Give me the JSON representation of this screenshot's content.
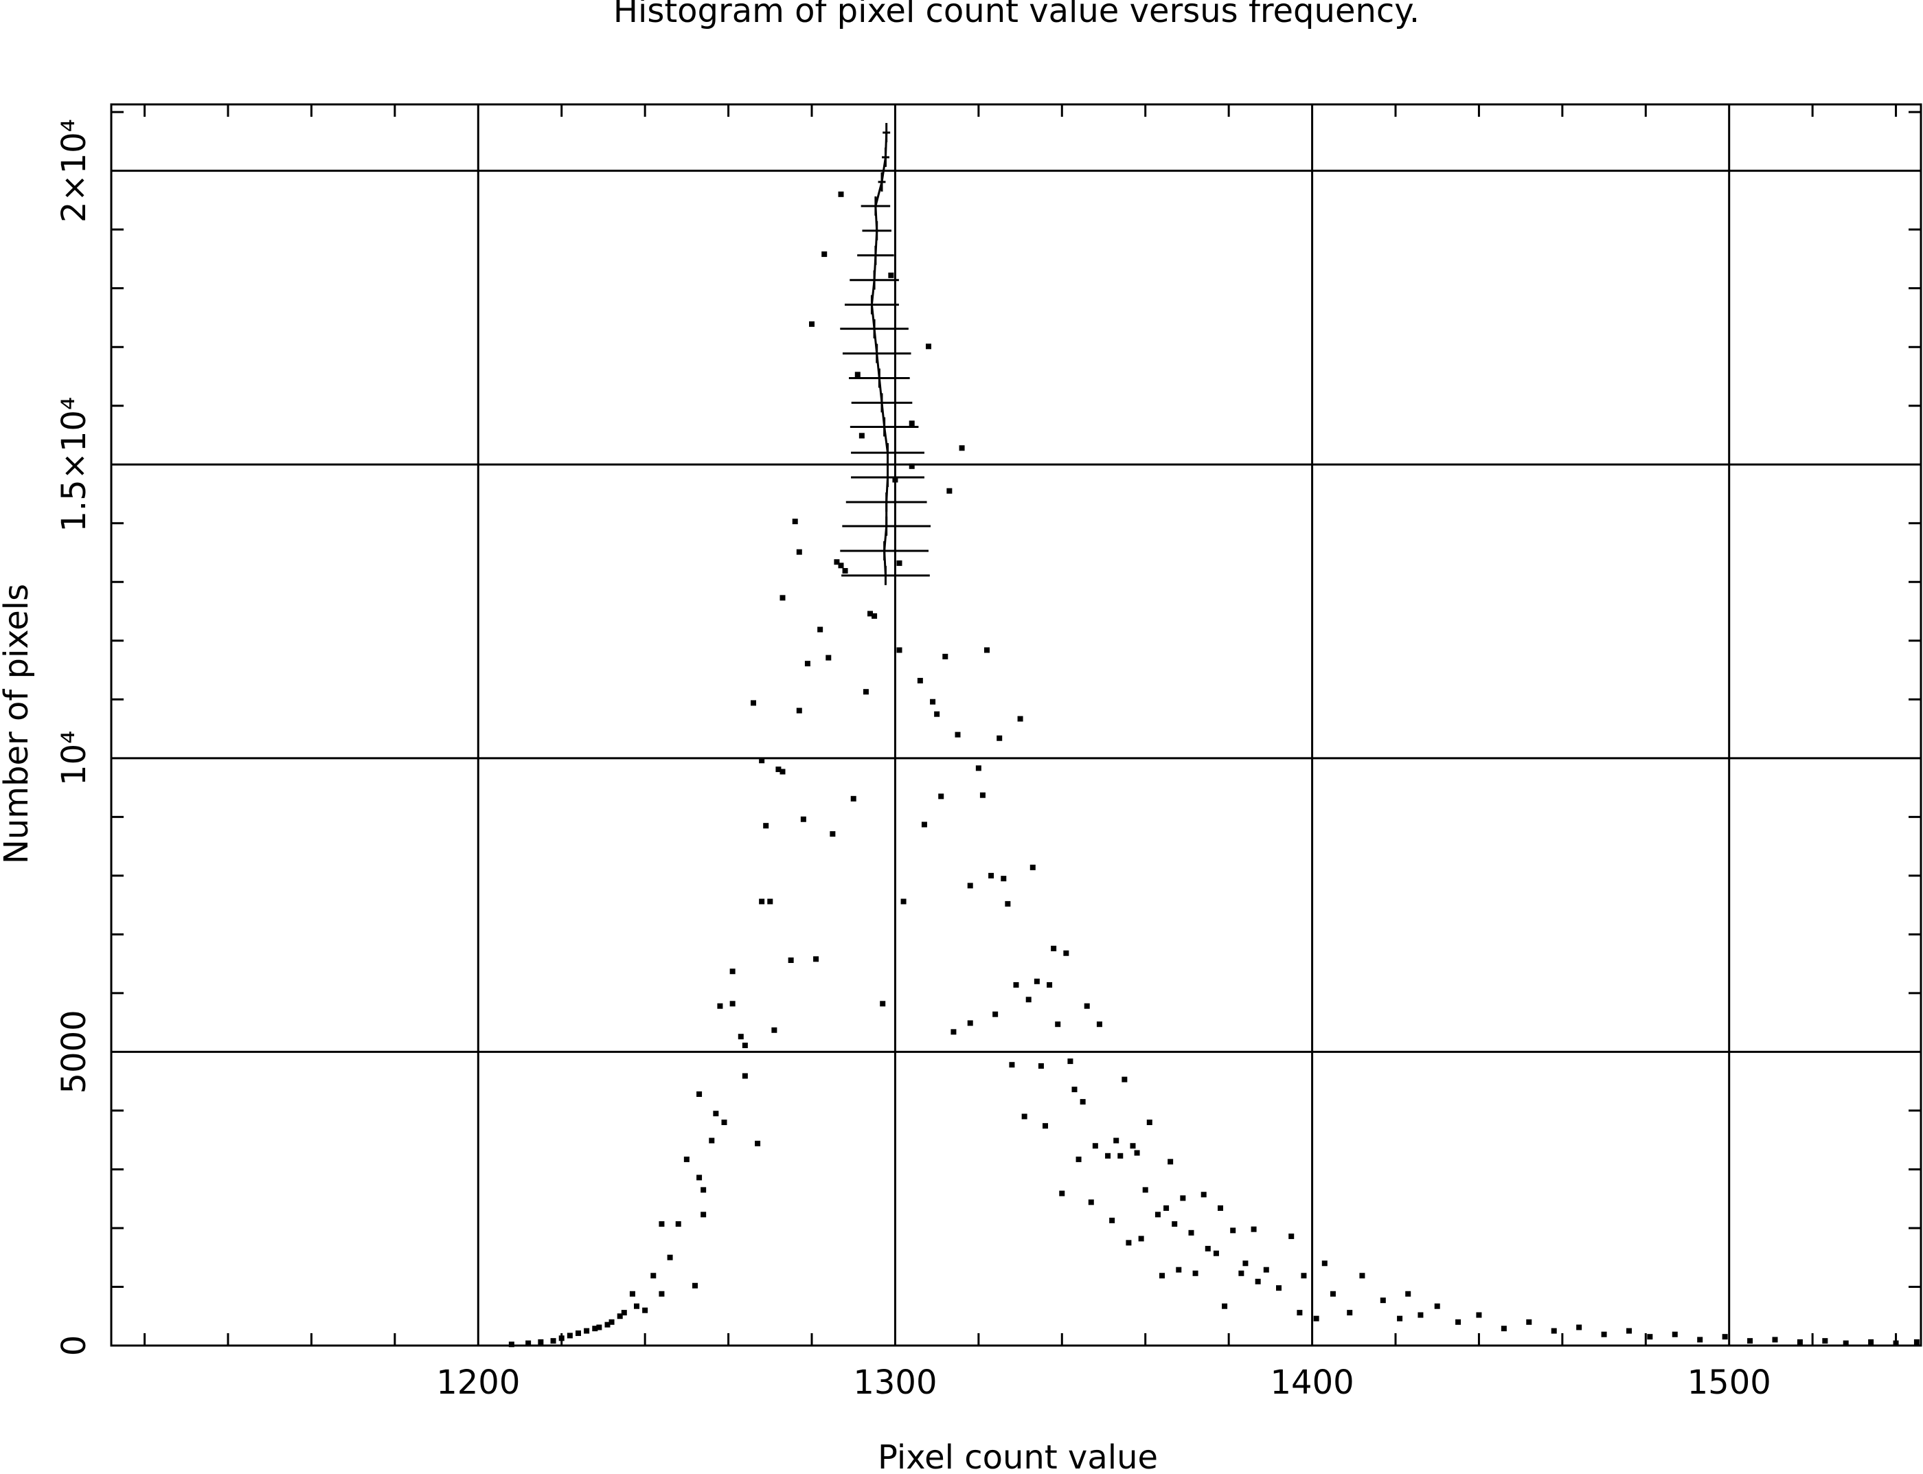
{
  "chart_data": {
    "type": "scatter",
    "title": "Histogram of pixel count value versus frequency.",
    "xlabel": "Pixel count value",
    "ylabel": "Number of pixels",
    "xlim": [
      1112,
      1546
    ],
    "ylim": [
      0,
      21130
    ],
    "xticks": [
      1200,
      1300,
      1400,
      1500
    ],
    "yticks": [
      0,
      5000,
      {
        "value": 10000,
        "label": "10⁴"
      },
      {
        "value": 15000,
        "label": "1.5×10⁴"
      },
      {
        "value": 20000,
        "label": "2×10⁴"
      }
    ],
    "xminorticks": [
      1120,
      1140,
      1160,
      1180,
      1220,
      1240,
      1260,
      1280,
      1320,
      1340,
      1360,
      1380,
      1420,
      1440,
      1460,
      1480,
      1520,
      1540
    ],
    "yminorticks": [
      1000,
      2000,
      3000,
      4000,
      6000,
      7000,
      8000,
      9000,
      11000,
      12000,
      13000,
      14000,
      16000,
      17000,
      18000,
      19000,
      21000
    ],
    "grid": true,
    "series": [
      {
        "color": "#000000",
        "x": [
          1208,
          1212,
          1215,
          1218,
          1220,
          1222,
          1224,
          1226,
          1228,
          1229,
          1231,
          1232,
          1234,
          1235,
          1237,
          1238,
          1240,
          1242,
          1244,
          1246,
          1244,
          1248,
          1250,
          1252,
          1253,
          1253,
          1254,
          1254,
          1256,
          1257,
          1259,
          1258,
          1261,
          1261,
          1263,
          1264,
          1264,
          1266,
          1267,
          1268,
          1269,
          1268,
          1270,
          1271,
          1272,
          1273,
          1273,
          1275,
          1276,
          1277,
          1277,
          1278,
          1279,
          1280,
          1281,
          1282,
          1283,
          1284,
          1285,
          1286,
          1287,
          1287,
          1288,
          1290,
          1291,
          1292,
          1293,
          1294,
          1295,
          1297,
          1299,
          1300,
          1301,
          1301,
          1302,
          1304,
          1304,
          1306,
          1307,
          1308,
          1309,
          1310,
          1311,
          1312,
          1313,
          1314,
          1315,
          1316,
          1318,
          1318,
          1320,
          1321,
          1322,
          1323,
          1324,
          1326,
          1327,
          1325,
          1328,
          1329,
          1330,
          1331,
          1332,
          1333,
          1334,
          1335,
          1336,
          1337,
          1338,
          1339,
          1340,
          1341,
          1342,
          1343,
          1344,
          1345,
          1346,
          1347,
          1348,
          1349,
          1351,
          1352,
          1353,
          1354,
          1355,
          1356,
          1357,
          1358,
          1359,
          1360,
          1361,
          1363,
          1364,
          1365,
          1366,
          1367,
          1368,
          1369,
          1371,
          1372,
          1374,
          1375,
          1377,
          1378,
          1379,
          1381,
          1383,
          1384,
          1386,
          1387,
          1389,
          1392,
          1395,
          1397,
          1398,
          1401,
          1403,
          1405,
          1409,
          1412,
          1417,
          1421,
          1423,
          1426,
          1430,
          1435,
          1440,
          1446,
          1452,
          1458,
          1464,
          1470,
          1476,
          1481,
          1487,
          1493,
          1499,
          1505,
          1511,
          1517,
          1523,
          1528,
          1534,
          1540,
          1545
        ],
        "values": [
          20,
          40,
          60,
          80,
          125,
          170,
          210,
          250,
          290,
          310,
          355,
          400,
          500,
          560,
          880,
          670,
          600,
          1190,
          880,
          1500,
          2070,
          2070,
          3170,
          1020,
          4280,
          2860,
          2230,
          2650,
          3490,
          3950,
          3800,
          5780,
          6370,
          5820,
          5260,
          5110,
          4590,
          10940,
          3440,
          9960,
          8850,
          7560,
          7560,
          5370,
          9810,
          9770,
          12730,
          6560,
          14030,
          10810,
          13510,
          8960,
          11610,
          17390,
          6580,
          12190,
          18580,
          11710,
          8710,
          13340,
          13280,
          19600,
          13190,
          9310,
          16530,
          15490,
          11130,
          12460,
          12420,
          5820,
          18220,
          14740,
          13320,
          11840,
          7560,
          15700,
          14970,
          11320,
          8870,
          17010,
          10960,
          10750,
          9350,
          11730,
          14550,
          5340,
          10400,
          15280,
          7830,
          5490,
          9830,
          9370,
          11840,
          8000,
          5640,
          7950,
          7520,
          10340,
          4780,
          6140,
          10670,
          3900,
          5890,
          8140,
          6200,
          4760,
          3740,
          6140,
          6760,
          5470,
          2590,
          6680,
          4840,
          4360,
          3170,
          4150,
          5780,
          2440,
          3400,
          5470,
          3230,
          2130,
          3490,
          3230,
          4530,
          1750,
          3400,
          3280,
          1820,
          2650,
          3800,
          2230,
          1190,
          2340,
          3130,
          2070,
          1290,
          2510,
          1920,
          1230,
          2570,
          1650,
          1570,
          2340,
          670,
          1960,
          1230,
          1400,
          1980,
          1090,
          1290,
          980,
          1860,
          560,
          1190,
          460,
          1400,
          880,
          560,
          1190,
          770,
          460,
          880,
          520,
          670,
          400,
          520,
          290,
          400,
          250,
          310,
          190,
          250,
          150,
          190,
          100,
          150,
          80,
          100,
          60,
          80,
          40,
          60,
          40,
          60
        ]
      },
      {
        "color": "#000000",
        "x": [
          1297.7,
          1297.4,
          1297.9,
          1297.9,
          1298.2,
          1298.2,
          1297.4,
          1296.8,
          1296.2,
          1295.6,
          1295.0,
          1294.4,
          1295.0,
          1295.3,
          1295.6,
          1295.3,
          1296.8,
          1297.7,
          1297.9
        ],
        "values": [
          13110,
          13530,
          13950,
          14360,
          14780,
          15200,
          15640,
          16050,
          16470,
          16890,
          17310,
          17720,
          18140,
          18560,
          18980,
          19400,
          19810,
          20230,
          20650
        ],
        "xerr": [
          10.6,
          10.6,
          10.6,
          9.7,
          8.8,
          8.8,
          8.2,
          7.3,
          7.3,
          8.2,
          8.2,
          6.5,
          5.9,
          4.4,
          3.5,
          3.5,
          0.9,
          0.9,
          0.9
        ]
      }
    ]
  }
}
